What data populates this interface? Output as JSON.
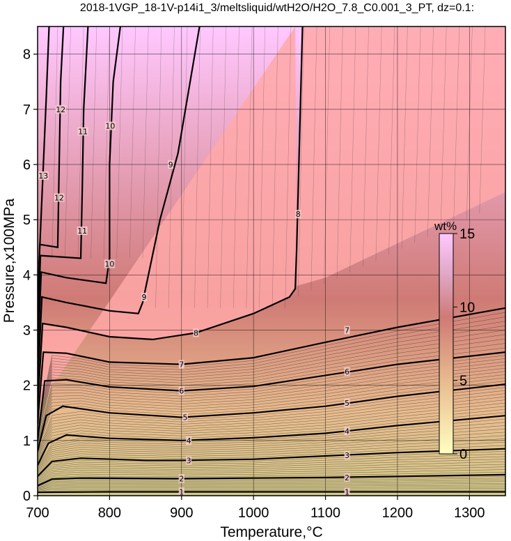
{
  "chart_data": {
    "type": "heatmap",
    "title": "2018-1VGP_18-1V-p14i1_3/meltsliquid/wtH2O/H2O_7.8_C0.001_3_PT, dz=0.1:",
    "xlabel": "Temperature,°C",
    "ylabel": "Pressure,x100MPa",
    "xlim": [
      700,
      1350
    ],
    "ylim": [
      0,
      8.5
    ],
    "x_ticks": [
      700,
      800,
      900,
      1000,
      1100,
      1200,
      1300
    ],
    "y_ticks": [
      0,
      1,
      2,
      3,
      4,
      5,
      6,
      7,
      8
    ],
    "grid": true,
    "colorbar": {
      "label": "wt%",
      "ticks": [
        0,
        5,
        10,
        15
      ],
      "range": [
        0,
        15
      ],
      "colors": [
        "#ffffc0",
        "#e8bb8e",
        "#cf7a75",
        "#e0a8c8",
        "#ffc8ff"
      ]
    },
    "fill_colors": {
      "saturated_region": "#ffa8a8",
      "low_pressure": "#d4c98a"
    },
    "contours": [
      {
        "level": 1,
        "points": [
          [
            700,
            0.06
          ],
          [
            800,
            0.07
          ],
          [
            900,
            0.07
          ],
          [
            1000,
            0.07
          ],
          [
            1100,
            0.07
          ],
          [
            1200,
            0.07
          ],
          [
            1350,
            0.07
          ]
        ],
        "labels": [
          [
            900,
            0.07
          ],
          [
            1130,
            0.07
          ]
        ]
      },
      {
        "level": 2,
        "points": [
          [
            700,
            0.18
          ],
          [
            720,
            0.3
          ],
          [
            760,
            0.32
          ],
          [
            900,
            0.31
          ],
          [
            1000,
            0.32
          ],
          [
            1100,
            0.33
          ],
          [
            1200,
            0.35
          ],
          [
            1350,
            0.38
          ]
        ],
        "labels": [
          [
            900,
            0.31
          ],
          [
            1130,
            0.33
          ]
        ]
      },
      {
        "level": 3,
        "points": [
          [
            700,
            0.35
          ],
          [
            720,
            0.62
          ],
          [
            760,
            0.68
          ],
          [
            850,
            0.64
          ],
          [
            900,
            0.64
          ],
          [
            1000,
            0.66
          ],
          [
            1100,
            0.72
          ],
          [
            1200,
            0.78
          ],
          [
            1350,
            0.85
          ]
        ],
        "labels": [
          [
            910,
            0.64
          ],
          [
            1130,
            0.73
          ]
        ]
      },
      {
        "level": 4,
        "points": [
          [
            700,
            0.55
          ],
          [
            715,
            0.95
          ],
          [
            740,
            1.1
          ],
          [
            800,
            1.04
          ],
          [
            900,
            1.0
          ],
          [
            1000,
            1.05
          ],
          [
            1100,
            1.13
          ],
          [
            1200,
            1.27
          ],
          [
            1350,
            1.45
          ]
        ],
        "labels": [
          [
            910,
            1.0
          ],
          [
            1130,
            1.17
          ]
        ]
      },
      {
        "level": 5,
        "points": [
          [
            700,
            0.8
          ],
          [
            712,
            1.45
          ],
          [
            735,
            1.62
          ],
          [
            800,
            1.5
          ],
          [
            900,
            1.42
          ],
          [
            1000,
            1.5
          ],
          [
            1100,
            1.62
          ],
          [
            1200,
            1.8
          ],
          [
            1350,
            2.02
          ]
        ],
        "labels": [
          [
            905,
            1.42
          ],
          [
            1130,
            1.68
          ]
        ]
      },
      {
        "level": 6,
        "points": [
          [
            700,
            1.0
          ],
          [
            710,
            2.08
          ],
          [
            740,
            2.1
          ],
          [
            800,
            1.97
          ],
          [
            900,
            1.9
          ],
          [
            1000,
            1.98
          ],
          [
            1100,
            2.18
          ],
          [
            1200,
            2.38
          ],
          [
            1350,
            2.6
          ]
        ],
        "labels": [
          [
            900,
            1.9
          ],
          [
            1130,
            2.25
          ]
        ]
      },
      {
        "level": 7,
        "points": [
          [
            700,
            1.3
          ],
          [
            708,
            2.6
          ],
          [
            740,
            2.58
          ],
          [
            800,
            2.42
          ],
          [
            900,
            2.38
          ],
          [
            1000,
            2.5
          ],
          [
            1100,
            2.78
          ],
          [
            1200,
            3.05
          ],
          [
            1350,
            3.4
          ]
        ],
        "labels": [
          [
            900,
            2.38
          ],
          [
            1130,
            3.0
          ]
        ]
      },
      {
        "level": 8,
        "points": [
          [
            700,
            1.6
          ],
          [
            707,
            3.12
          ],
          [
            740,
            3.05
          ],
          [
            800,
            2.88
          ],
          [
            860,
            2.83
          ],
          [
            920,
            2.95
          ],
          [
            1000,
            3.3
          ],
          [
            1050,
            3.6
          ],
          [
            1058,
            3.75
          ],
          [
            1060,
            4.5
          ],
          [
            1063,
            6.0
          ],
          [
            1068,
            8.5
          ]
        ],
        "labels": [
          [
            920,
            2.95
          ],
          [
            1062,
            5.1
          ]
        ]
      },
      {
        "level": 9,
        "points": [
          [
            700,
            2.0
          ],
          [
            706,
            3.6
          ],
          [
            740,
            3.5
          ],
          [
            800,
            3.35
          ],
          [
            840,
            3.3
          ],
          [
            846,
            3.5
          ],
          [
            870,
            5.0
          ],
          [
            895,
            6.2
          ],
          [
            925,
            8.5
          ]
        ],
        "labels": [
          [
            848,
            3.6
          ],
          [
            885,
            6.0
          ]
        ]
      },
      {
        "level": 10,
        "points": [
          [
            700,
            2.5
          ],
          [
            705,
            4.05
          ],
          [
            740,
            3.95
          ],
          [
            795,
            3.85
          ],
          [
            800,
            4.3
          ],
          [
            800,
            6.0
          ],
          [
            805,
            7.5
          ],
          [
            815,
            8.5
          ]
        ],
        "labels": [
          [
            800,
            4.2
          ],
          [
            801,
            6.7
          ]
        ]
      },
      {
        "level": 11,
        "points": [
          [
            700,
            2.9
          ],
          [
            704,
            4.35
          ],
          [
            760,
            4.3
          ],
          [
            762,
            5.5
          ],
          [
            764,
            7.0
          ],
          [
            770,
            8.5
          ]
        ],
        "labels": [
          [
            762,
            4.8
          ],
          [
            763,
            6.6
          ]
        ]
      },
      {
        "level": 12,
        "points": [
          [
            700,
            3.3
          ],
          [
            703,
            4.55
          ],
          [
            728,
            4.5
          ],
          [
            730,
            6.0
          ],
          [
            732,
            7.5
          ],
          [
            736,
            8.5
          ]
        ],
        "labels": [
          [
            730,
            5.4
          ],
          [
            732,
            7.0
          ]
        ]
      },
      {
        "level": 13,
        "points": [
          [
            702,
            4.2
          ],
          [
            708,
            6.0
          ],
          [
            712,
            7.2
          ],
          [
            716,
            8.5
          ]
        ],
        "labels": [
          [
            708,
            5.8
          ]
        ]
      }
    ]
  }
}
